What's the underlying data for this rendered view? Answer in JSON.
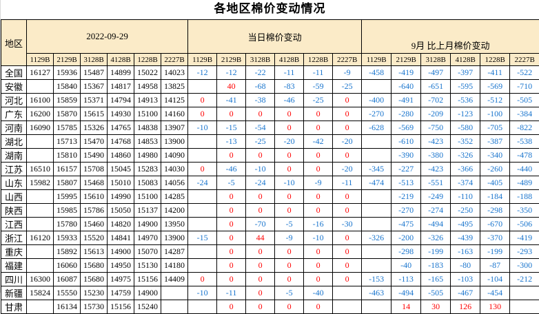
{
  "title": "各地区棉价变动情况",
  "colors": {
    "header_bg": "#FBEBC8",
    "negative_value": "#1874CD",
    "positive_value": "#FF0000",
    "border": "#000000",
    "price_value": "#000000"
  },
  "chart_data": {
    "type": "table",
    "title": "各地区棉价变动情况",
    "region_header": "地区",
    "groups": [
      {
        "label": "2022-09-29",
        "columns": [
          "1129B",
          "2129B",
          "3128B",
          "4128B",
          "1228B",
          "2227B"
        ]
      },
      {
        "label": "当日棉价变动",
        "columns": [
          "1129B",
          "2129B",
          "3128B",
          "4128B",
          "1228B",
          "2227B"
        ]
      },
      {
        "label": "9月 比上月棉价变动",
        "columns": [
          "1129B",
          "2129B",
          "3128B",
          "4128B",
          "1228B",
          "2227B"
        ]
      }
    ],
    "rows": [
      {
        "region": "全国",
        "price": [
          "16127",
          "15936",
          "15487",
          "14899",
          "15022",
          "14023"
        ],
        "daily": [
          "-12",
          "-12",
          "-22",
          "-11",
          "-11",
          "-9"
        ],
        "monthly": [
          "-458",
          "-419",
          "-497",
          "-397",
          "-411",
          "-522"
        ]
      },
      {
        "region": "安徽",
        "price": [
          "",
          "15840",
          "15367",
          "14817",
          "14958",
          "13825"
        ],
        "daily": [
          "",
          "40",
          "-68",
          "-83",
          "-59",
          "-25"
        ],
        "monthly": [
          "",
          "-640",
          "-651",
          "-595",
          "-569",
          "-710"
        ]
      },
      {
        "region": "河北",
        "price": [
          "16100",
          "15859",
          "15371",
          "14794",
          "14913",
          "14125"
        ],
        "daily": [
          "0",
          "-41",
          "-38",
          "-46",
          "-25",
          "0"
        ],
        "monthly": [
          "-400",
          "-491",
          "-702",
          "-536",
          "-512",
          "-505"
        ]
      },
      {
        "region": "广东",
        "price": [
          "16200",
          "15870",
          "15615",
          "14930",
          "15100",
          "14160"
        ],
        "daily": [
          "0",
          "0",
          "0",
          "0",
          "0",
          "0"
        ],
        "monthly": [
          "-270",
          "-280",
          "-209",
          "-123",
          "-100",
          "-384"
        ]
      },
      {
        "region": "河南",
        "price": [
          "16090",
          "15785",
          "15326",
          "14765",
          "14838",
          "13907"
        ],
        "daily": [
          "-10",
          "-15",
          "-54",
          "0",
          "0",
          "0"
        ],
        "monthly": [
          "-628",
          "-569",
          "-750",
          "-580",
          "-705",
          "-822"
        ]
      },
      {
        "region": "湖北",
        "price": [
          "",
          "15713",
          "15470",
          "14768",
          "14853",
          "13900"
        ],
        "daily": [
          "",
          "-13",
          "-25",
          "-20",
          "-42",
          "-20"
        ],
        "monthly": [
          "",
          "-610",
          "-423",
          "-352",
          "-387",
          "-538"
        ]
      },
      {
        "region": "湖南",
        "price": [
          "",
          "15810",
          "15490",
          "14860",
          "14980",
          "14090"
        ],
        "daily": [
          "",
          "0",
          "0",
          "0",
          "0",
          "0"
        ],
        "monthly": [
          "",
          "-390",
          "-380",
          "-326",
          "-340",
          "-478"
        ]
      },
      {
        "region": "江苏",
        "price": [
          "16510",
          "16157",
          "15708",
          "15045",
          "15283",
          "14030"
        ],
        "daily": [
          "0",
          "-46",
          "-10",
          "0",
          "0",
          "-20"
        ],
        "monthly": [
          "-345",
          "-227",
          "-423",
          "-366",
          "-260",
          "-440"
        ]
      },
      {
        "region": "山东",
        "price": [
          "15982",
          "15807",
          "15468",
          "15010",
          "15083",
          "14056"
        ],
        "daily": [
          "-24",
          "-5",
          "-24",
          "-10",
          "-9",
          "-11"
        ],
        "monthly": [
          "-474",
          "-513",
          "-551",
          "-374",
          "-405",
          "-489"
        ]
      },
      {
        "region": "山西",
        "price": [
          "",
          "15995",
          "15610",
          "14990",
          "15100",
          "14285"
        ],
        "daily": [
          "",
          "0",
          "0",
          "0",
          "0",
          "0"
        ],
        "monthly": [
          "",
          "-219",
          "-249",
          "-110",
          "-184",
          "-188"
        ]
      },
      {
        "region": "陕西",
        "price": [
          "",
          "15985",
          "15786",
          "15050",
          "15137",
          "14200"
        ],
        "daily": [
          "",
          "0",
          "0",
          "0",
          "0",
          "0"
        ],
        "monthly": [
          "",
          "-270",
          "-274",
          "-250",
          "-298",
          "-350"
        ]
      },
      {
        "region": "江西",
        "price": [
          "",
          "15780",
          "15460",
          "14820",
          "14900",
          "13950"
        ],
        "daily": [
          "",
          "0",
          "-70",
          "-5",
          "-16",
          "-30"
        ],
        "monthly": [
          "",
          "-475",
          "-494",
          "-495",
          "-670",
          "-506"
        ]
      },
      {
        "region": "浙江",
        "price": [
          "16120",
          "15933",
          "15520",
          "14841",
          "14970",
          "13900"
        ],
        "daily": [
          "-15",
          "0",
          "44",
          "-9",
          "-10",
          "0"
        ],
        "monthly": [
          "-326",
          "-200",
          "-326",
          "-439",
          "-370",
          "-419"
        ]
      },
      {
        "region": "重庆",
        "price": [
          "",
          "15892",
          "15613",
          "14900",
          "15070",
          "14287"
        ],
        "daily": [
          "",
          "0",
          "0",
          "0",
          "0",
          "0"
        ],
        "monthly": [
          "",
          "-298",
          "-199",
          "-163",
          "-199",
          "-293"
        ]
      },
      {
        "region": "福建",
        "price": [
          "",
          "16060",
          "15680",
          "14950",
          "15130",
          "14180"
        ],
        "daily": [
          "",
          "0",
          "0",
          "0",
          "0",
          "0"
        ],
        "monthly": [
          "",
          "-40",
          "-183",
          "-80",
          "-87",
          "-300"
        ]
      },
      {
        "region": "四川",
        "price": [
          "16300",
          "16087",
          "15680",
          "14975",
          "15156",
          "14409"
        ],
        "daily": [
          "0",
          "0",
          "0",
          "0",
          "0",
          "0"
        ],
        "monthly": [
          "-153",
          "-113",
          "-165",
          "-103",
          "-104",
          "-212"
        ]
      },
      {
        "region": "新疆",
        "price": [
          "15824",
          "15550",
          "15230",
          "14759",
          "14900",
          ""
        ],
        "daily": [
          "-10",
          "-11",
          "0",
          "-5",
          "-40",
          ""
        ],
        "monthly": [
          "-463",
          "-494",
          "-505",
          "-467",
          "-454",
          ""
        ]
      },
      {
        "region": "甘肃",
        "price": [
          "",
          "16134",
          "15730",
          "15156",
          "15240",
          ""
        ],
        "daily": [
          "",
          "0",
          "0",
          "0",
          "0",
          ""
        ],
        "monthly": [
          "",
          "14",
          "30",
          "126",
          "130",
          ""
        ]
      }
    ]
  }
}
